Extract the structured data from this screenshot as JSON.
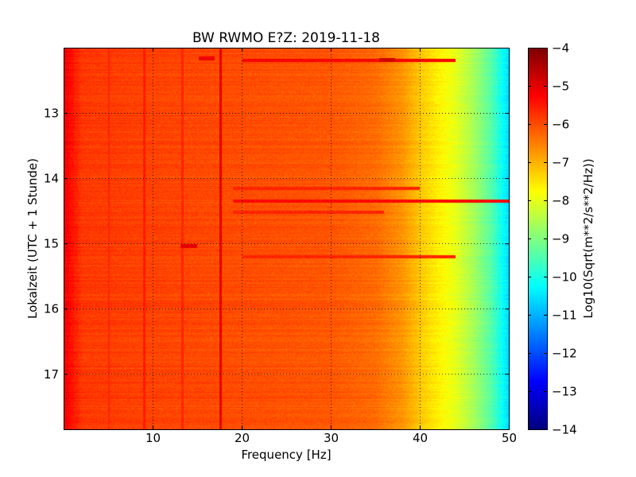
{
  "chart_data": {
    "type": "heatmap",
    "title": "BW RWMO E?Z: 2019-11-18",
    "xlabel": "Frequency [Hz]",
    "ylabel": "Lokalzeit (UTC + 1 Stunde)",
    "xlim": [
      0,
      50
    ],
    "ylim": [
      12.0,
      17.85
    ],
    "x_ticks": [
      10,
      20,
      30,
      40,
      50
    ],
    "y_ticks": [
      13,
      14,
      15,
      16,
      17
    ],
    "y_inverted": true,
    "grid": "dotted",
    "colorbar": {
      "label": "Log10(Sqrt(m**2/s**2/Hz))",
      "min": -14,
      "max": -4,
      "ticks": [
        -4,
        -5,
        -6,
        -7,
        -8,
        -9,
        -10,
        -11,
        -12,
        -13,
        -14
      ],
      "colormap": "jet",
      "placement": "right"
    },
    "spectrum_profile": [
      {
        "freq": 0.2,
        "value": -5.2
      },
      {
        "freq": 2,
        "value": -5.8
      },
      {
        "freq": 10,
        "value": -5.9
      },
      {
        "freq": 20,
        "value": -6.0
      },
      {
        "freq": 30,
        "value": -6.1
      },
      {
        "freq": 35,
        "value": -6.3
      },
      {
        "freq": 38,
        "value": -6.7
      },
      {
        "freq": 40,
        "value": -7.2
      },
      {
        "freq": 42,
        "value": -7.6
      },
      {
        "freq": 44,
        "value": -8.0
      },
      {
        "freq": 46,
        "value": -8.6
      },
      {
        "freq": 48,
        "value": -9.4
      },
      {
        "freq": 50,
        "value": -10.6
      }
    ],
    "features": [
      {
        "kind": "vertical-line",
        "freq": 17.6,
        "value": -5.0
      },
      {
        "kind": "vertical-line",
        "freq": 9.0,
        "value": -5.5
      },
      {
        "kind": "vertical-line",
        "freq": 13.3,
        "value": -5.6
      },
      {
        "kind": "vertical-line",
        "freq": 5.0,
        "value": -5.6
      },
      {
        "kind": "horizontal-band",
        "time": 12.18,
        "freq_from": 20,
        "freq_to": 44,
        "value": -5.2
      },
      {
        "kind": "horizontal-band",
        "time": 14.35,
        "freq_from": 19,
        "freq_to": 50,
        "value": -5.3
      },
      {
        "kind": "horizontal-band",
        "time": 14.15,
        "freq_from": 19,
        "freq_to": 40,
        "value": -5.6
      },
      {
        "kind": "horizontal-band",
        "time": 14.52,
        "freq_from": 19,
        "freq_to": 36,
        "value": -5.6
      },
      {
        "kind": "horizontal-band",
        "time": 15.2,
        "freq_from": 20,
        "freq_to": 44,
        "value": -5.6
      },
      {
        "kind": "spot",
        "time": 15.04,
        "freq": 14.0,
        "value": -5.0
      },
      {
        "kind": "spot",
        "time": 12.15,
        "freq": 16.0,
        "value": -5.1
      },
      {
        "kind": "spot",
        "time": 12.18,
        "freq": 36.3,
        "value": -4.8
      }
    ]
  }
}
